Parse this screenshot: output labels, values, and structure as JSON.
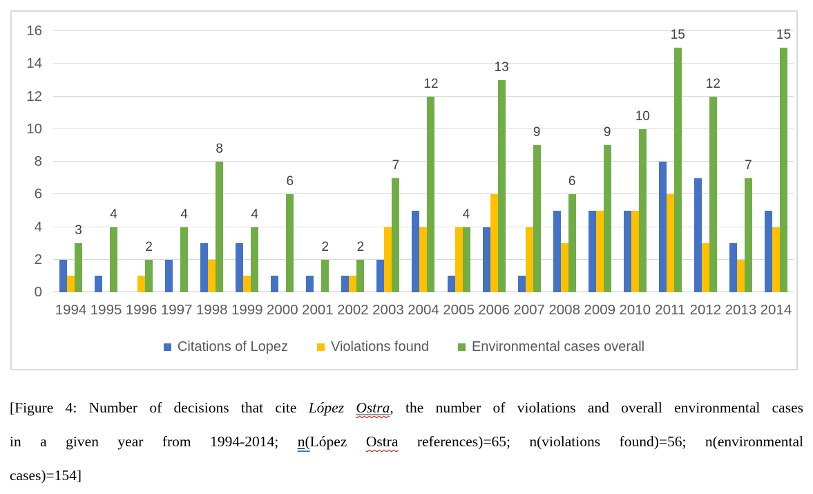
{
  "chart_data": {
    "type": "bar",
    "title": "",
    "xlabel": "",
    "ylabel": "",
    "ylim": [
      0,
      16
    ],
    "ytick_step": 2,
    "grid": true,
    "legend_position": "bottom",
    "categories": [
      "1994",
      "1995",
      "1996",
      "1997",
      "1998",
      "1999",
      "2000",
      "2001",
      "2002",
      "2003",
      "2004",
      "2005",
      "2006",
      "2007",
      "2008",
      "2009",
      "2010",
      "2011",
      "2012",
      "2013",
      "2014"
    ],
    "series": [
      {
        "key": "citations",
        "name": "Citations of Lopez",
        "color": "#4472C4",
        "values": [
          2,
          1,
          0,
          2,
          3,
          3,
          1,
          1,
          1,
          2,
          5,
          1,
          4,
          1,
          5,
          5,
          5,
          8,
          7,
          3,
          5
        ]
      },
      {
        "key": "violations",
        "name": "Violations found",
        "color": "#FFC000",
        "values": [
          1,
          0,
          1,
          0,
          2,
          1,
          0,
          0,
          1,
          4,
          4,
          4,
          6,
          4,
          3,
          5,
          5,
          6,
          3,
          2,
          4
        ]
      },
      {
        "key": "environmental",
        "name": "Environmental cases overall",
        "color": "#70AD47",
        "values": [
          3,
          4,
          2,
          4,
          8,
          4,
          6,
          2,
          2,
          7,
          12,
          4,
          13,
          9,
          6,
          9,
          10,
          15,
          12,
          7,
          15
        ],
        "show_data_labels": true
      }
    ]
  },
  "caption": {
    "lines": [
      {
        "last": false,
        "segments": [
          {
            "text": "[Figure 4: Number of decisions that cite ",
            "styles": []
          },
          {
            "text": "López ",
            "styles": [
              "italic"
            ]
          },
          {
            "text": "Ostra",
            "styles": [
              "italic",
              "underline",
              "spellcheck"
            ]
          },
          {
            "text": ", the number of violations and overall environmental cases",
            "styles": []
          }
        ]
      },
      {
        "last": false,
        "segments": [
          {
            "text": "in a given year from 1994-2014; ",
            "styles": []
          },
          {
            "text": "n",
            "styles": [
              "underline",
              "grammarcheck"
            ]
          },
          {
            "text": "(",
            "styles": [
              "grammarcheck"
            ]
          },
          {
            "text": "López ",
            "styles": []
          },
          {
            "text": "Ostra",
            "styles": [
              "spellcheck"
            ]
          },
          {
            "text": " references)=65; n(violations found)=56; n(environmental",
            "styles": []
          }
        ]
      },
      {
        "last": true,
        "segments": [
          {
            "text": "cases)=154]",
            "styles": []
          }
        ]
      }
    ]
  },
  "colors": {
    "bar_blue": "#4472C4",
    "bar_yellow": "#FFC000",
    "bar_green": "#70AD47",
    "gridline": "#D9D9D9",
    "axis_text": "#595959",
    "data_label_text": "#404040",
    "chart_border": "#D9D9D9",
    "spellcheck_red": "#D40000",
    "grammar_blue": "#2E75B6"
  }
}
